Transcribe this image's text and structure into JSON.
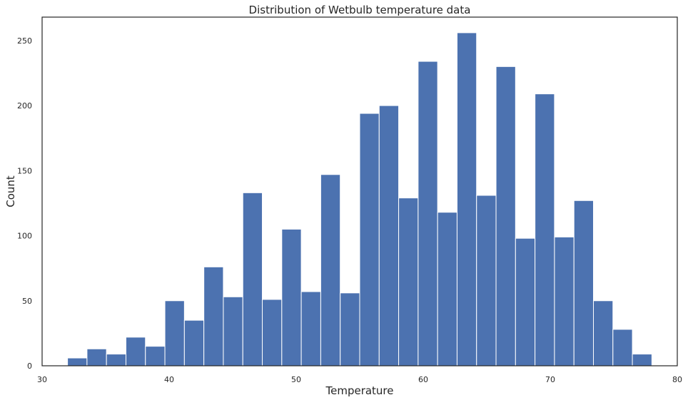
{
  "chart_data": {
    "type": "bar",
    "title": "Distribution of Wetbulb temperature data",
    "xlabel": "Temperature",
    "ylabel": "Count",
    "xlim": [
      30,
      80
    ],
    "ylim": [
      0,
      268
    ],
    "grid": false,
    "x_ticks": [
      30,
      40,
      50,
      60,
      70,
      80
    ],
    "y_ticks": [
      0,
      50,
      100,
      150,
      200,
      250
    ],
    "bar_color": "#4c72b0",
    "bin_start": 32,
    "bin_width": 1.5333,
    "values": [
      6,
      13,
      9,
      22,
      15,
      50,
      35,
      76,
      53,
      133,
      51,
      105,
      57,
      147,
      56,
      194,
      200,
      129,
      234,
      118,
      256,
      131,
      230,
      98,
      209,
      99,
      127,
      50,
      28,
      9
    ]
  }
}
